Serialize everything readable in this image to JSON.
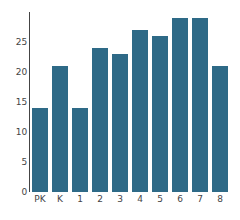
{
  "chart_data": {
    "type": "bar",
    "categories": [
      "PK",
      "K",
      "1",
      "2",
      "3",
      "4",
      "5",
      "6",
      "7",
      "8"
    ],
    "values": [
      14,
      21,
      14,
      24,
      23,
      27,
      26,
      29,
      29,
      21
    ],
    "color": "#2e6a87",
    "ylim": [
      0,
      30
    ],
    "yticks": [
      0,
      5,
      10,
      15,
      20,
      25
    ],
    "grid": false
  }
}
